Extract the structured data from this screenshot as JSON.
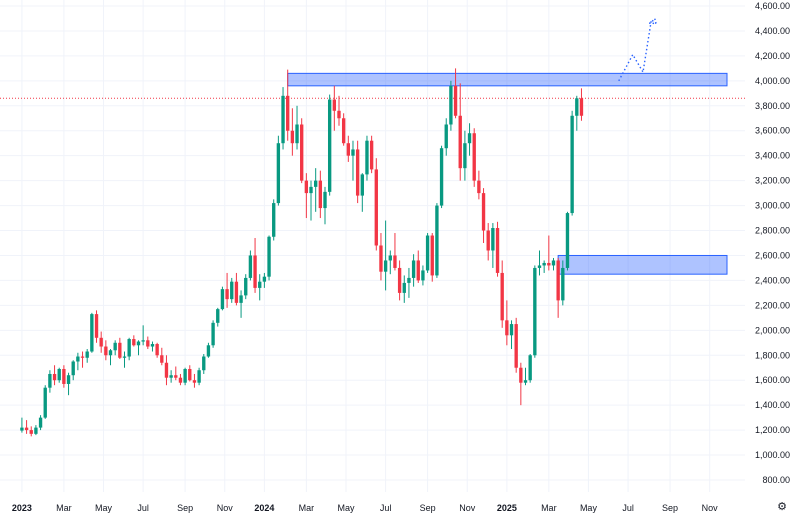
{
  "chart_data": {
    "type": "candlestick",
    "y_ticks": [
      800,
      1000,
      1200,
      1400,
      1600,
      1800,
      2000,
      2200,
      2400,
      2600,
      2800,
      3000,
      3200,
      3400,
      3600,
      3800,
      4000,
      4200,
      4400,
      4600
    ],
    "y_tick_labels": [
      "800.00",
      "1,000.00",
      "1,200.00",
      "1,400.00",
      "1,600.00",
      "1,800.00",
      "2,000.00",
      "2,200.00",
      "2,400.00",
      "2,600.00",
      "2,800.00",
      "3,000.00",
      "3,200.00",
      "3,400.00",
      "3,600.00",
      "3,800.00",
      "4,000.00",
      "4,200.00",
      "4,400.00",
      "4,600.00"
    ],
    "ylim": [
      700,
      4650
    ],
    "x_ticks": [
      {
        "label": "2023",
        "week": 0,
        "bold": true
      },
      {
        "label": "Mar",
        "week": 9
      },
      {
        "label": "May",
        "week": 17.5
      },
      {
        "label": "Jul",
        "week": 26
      },
      {
        "label": "Sep",
        "week": 35
      },
      {
        "label": "Nov",
        "week": 43.5
      },
      {
        "label": "2024",
        "week": 52,
        "bold": true
      },
      {
        "label": "Mar",
        "week": 61
      },
      {
        "label": "May",
        "week": 69.5
      },
      {
        "label": "Jul",
        "week": 78
      },
      {
        "label": "Sep",
        "week": 87
      },
      {
        "label": "Nov",
        "week": 95.5
      },
      {
        "label": "2025",
        "week": 104,
        "bold": true
      },
      {
        "label": "Mar",
        "week": 113
      },
      {
        "label": "May",
        "week": 121.5
      },
      {
        "label": "Jul",
        "week": 130
      },
      {
        "label": "Sep",
        "week": 139
      },
      {
        "label": "Nov",
        "week": 147.5
      }
    ],
    "week_range": [
      -4.7,
      154
    ],
    "candles": [
      [
        1196,
        1300,
        1180,
        1220
      ],
      [
        1220,
        1280,
        1170,
        1200
      ],
      [
        1200,
        1230,
        1150,
        1170
      ],
      [
        1170,
        1240,
        1160,
        1220
      ],
      [
        1220,
        1320,
        1200,
        1300
      ],
      [
        1300,
        1560,
        1290,
        1540
      ],
      [
        1540,
        1680,
        1500,
        1650
      ],
      [
        1650,
        1720,
        1560,
        1600
      ],
      [
        1600,
        1700,
        1580,
        1690
      ],
      [
        1690,
        1720,
        1540,
        1570
      ],
      [
        1570,
        1660,
        1480,
        1640
      ],
      [
        1640,
        1760,
        1600,
        1750
      ],
      [
        1750,
        1820,
        1680,
        1790
      ],
      [
        1790,
        1830,
        1700,
        1780
      ],
      [
        1780,
        1850,
        1740,
        1830
      ],
      [
        1830,
        2140,
        1820,
        2130
      ],
      [
        2130,
        2160,
        1900,
        1940
      ],
      [
        1940,
        1990,
        1820,
        1870
      ],
      [
        1870,
        1920,
        1760,
        1800
      ],
      [
        1800,
        1850,
        1720,
        1840
      ],
      [
        1840,
        1920,
        1800,
        1900
      ],
      [
        1900,
        1940,
        1770,
        1780
      ],
      [
        1780,
        1830,
        1700,
        1790
      ],
      [
        1790,
        1940,
        1760,
        1930
      ],
      [
        1930,
        1960,
        1870,
        1880
      ],
      [
        1880,
        1920,
        1800,
        1910
      ],
      [
        1910,
        2040,
        1880,
        1920
      ],
      [
        1920,
        1950,
        1850,
        1870
      ],
      [
        1870,
        1910,
        1830,
        1890
      ],
      [
        1890,
        1900,
        1780,
        1800
      ],
      [
        1800,
        1860,
        1720,
        1740
      ],
      [
        1740,
        1800,
        1560,
        1620
      ],
      [
        1620,
        1680,
        1580,
        1640
      ],
      [
        1640,
        1710,
        1600,
        1620
      ],
      [
        1620,
        1650,
        1560,
        1580
      ],
      [
        1580,
        1700,
        1560,
        1690
      ],
      [
        1690,
        1720,
        1590,
        1600
      ],
      [
        1600,
        1650,
        1540,
        1580
      ],
      [
        1580,
        1700,
        1560,
        1680
      ],
      [
        1680,
        1810,
        1650,
        1790
      ],
      [
        1790,
        1900,
        1780,
        1880
      ],
      [
        1880,
        2080,
        1860,
        2060
      ],
      [
        2060,
        2180,
        2030,
        2170
      ],
      [
        2170,
        2350,
        2160,
        2330
      ],
      [
        2330,
        2460,
        2180,
        2250
      ],
      [
        2250,
        2420,
        2220,
        2390
      ],
      [
        2390,
        2460,
        2200,
        2220
      ],
      [
        2220,
        2320,
        2100,
        2280
      ],
      [
        2280,
        2450,
        2250,
        2420
      ],
      [
        2420,
        2640,
        2400,
        2600
      ],
      [
        2600,
        2740,
        2300,
        2340
      ],
      [
        2340,
        2450,
        2240,
        2390
      ],
      [
        2390,
        2460,
        2340,
        2430
      ],
      [
        2430,
        2760,
        2400,
        2750
      ],
      [
        2750,
        3050,
        2720,
        3020
      ],
      [
        3020,
        3560,
        3000,
        3500
      ],
      [
        3500,
        3950,
        3450,
        3880
      ],
      [
        3880,
        4090,
        3520,
        3600
      ],
      [
        3600,
        3780,
        3400,
        3500
      ],
      [
        3500,
        3800,
        3450,
        3650
      ],
      [
        3650,
        3700,
        3180,
        3200
      ],
      [
        3200,
        3260,
        2900,
        3100
      ],
      [
        3100,
        3200,
        2880,
        3150
      ],
      [
        3150,
        3300,
        2950,
        3200
      ],
      [
        3200,
        3280,
        2900,
        2980
      ],
      [
        2980,
        3150,
        2850,
        3110
      ],
      [
        3110,
        3890,
        3080,
        3850
      ],
      [
        3850,
        3960,
        3600,
        3760
      ],
      [
        3760,
        3880,
        3640,
        3700
      ],
      [
        3700,
        3740,
        3480,
        3500
      ],
      [
        3500,
        3560,
        3350,
        3400
      ],
      [
        3400,
        3520,
        3200,
        3450
      ],
      [
        3450,
        3520,
        3020,
        3080
      ],
      [
        3080,
        3260,
        2950,
        3250
      ],
      [
        3250,
        3560,
        3200,
        3520
      ],
      [
        3520,
        3560,
        3260,
        3290
      ],
      [
        3290,
        3380,
        2640,
        2680
      ],
      [
        2680,
        2780,
        2400,
        2470
      ],
      [
        2470,
        2880,
        2320,
        2560
      ],
      [
        2560,
        2640,
        2450,
        2600
      ],
      [
        2600,
        2780,
        2480,
        2500
      ],
      [
        2500,
        2560,
        2240,
        2300
      ],
      [
        2300,
        2440,
        2220,
        2380
      ],
      [
        2380,
        2500,
        2260,
        2420
      ],
      [
        2420,
        2610,
        2350,
        2560
      ],
      [
        2560,
        2640,
        2380,
        2400
      ],
      [
        2400,
        2520,
        2360,
        2480
      ],
      [
        2480,
        2780,
        2460,
        2760
      ],
      [
        2760,
        2780,
        2390,
        2440
      ],
      [
        2440,
        3020,
        2420,
        3000
      ],
      [
        3000,
        3480,
        2980,
        3460
      ],
      [
        3460,
        3700,
        3400,
        3650
      ],
      [
        3650,
        4000,
        3600,
        3960
      ],
      [
        3960,
        4100,
        3700,
        3720
      ],
      [
        3720,
        3980,
        3200,
        3300
      ],
      [
        3300,
        3600,
        3200,
        3500
      ],
      [
        3500,
        3660,
        3400,
        3580
      ],
      [
        3580,
        3620,
        3150,
        3200
      ],
      [
        3200,
        3280,
        3050,
        3100
      ],
      [
        3100,
        3140,
        2700,
        2800
      ],
      [
        2800,
        2860,
        2560,
        2640
      ],
      [
        2640,
        2860,
        2500,
        2820
      ],
      [
        2820,
        2870,
        2430,
        2460
      ],
      [
        2460,
        2560,
        2020,
        2080
      ],
      [
        2080,
        2240,
        1880,
        1960
      ],
      [
        1960,
        2080,
        1850,
        2050
      ],
      [
        2050,
        2100,
        1660,
        1700
      ],
      [
        1700,
        1740,
        1400,
        1580
      ],
      [
        1580,
        1700,
        1560,
        1600
      ],
      [
        1600,
        1810,
        1580,
        1800
      ],
      [
        1800,
        2520,
        1780,
        2500
      ],
      [
        2500,
        2640,
        2440,
        2520
      ],
      [
        2520,
        2560,
        2460,
        2540
      ],
      [
        2540,
        2760,
        2480,
        2520
      ],
      [
        2520,
        2580,
        2480,
        2560
      ],
      [
        2560,
        2580,
        2100,
        2240
      ],
      [
        2240,
        2560,
        2200,
        2500
      ],
      [
        2500,
        2950,
        2480,
        2940
      ],
      [
        2940,
        3760,
        2920,
        3720
      ],
      [
        3720,
        3880,
        3600,
        3860
      ],
      [
        3860,
        3940,
        3680,
        3720
      ]
    ],
    "resistance_zone": {
      "y_low": 3960,
      "y_high": 4060,
      "week_start": 57,
      "color": "#2962ff"
    },
    "support_zone": {
      "y_low": 2450,
      "y_high": 2600,
      "week_start": 115,
      "color": "#2962ff"
    },
    "current_price_line": 3860,
    "projection": [
      [
        128,
        4000
      ],
      [
        131,
        4210
      ],
      [
        133.2,
        4070
      ],
      [
        135,
        4490
      ],
      [
        136,
        4460
      ]
    ],
    "up_color": "#089981",
    "down_color": "#f23645"
  }
}
